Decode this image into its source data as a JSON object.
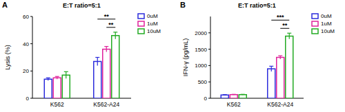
{
  "chart_data": [
    {
      "type": "bar",
      "panel_label": "A",
      "title": "E:T ratio=5:1",
      "y_label": "Lysis (%)",
      "categories": [
        "K562",
        "K562-A24"
      ],
      "series": [
        {
          "name": "0uM",
          "color": "#2b2bdc",
          "values": [
            14,
            27
          ],
          "errors": [
            1,
            3
          ]
        },
        {
          "name": "1uM",
          "color": "#e0209a",
          "values": [
            15,
            36
          ],
          "errors": [
            1,
            2
          ]
        },
        {
          "name": "10uM",
          "color": "#22aa22",
          "values": [
            17,
            46
          ],
          "errors": [
            2.5,
            2.5
          ]
        }
      ],
      "ylim": [
        0,
        60
      ],
      "yticks": [
        0,
        20,
        40,
        60
      ],
      "legend": "right",
      "annotations": [
        {
          "text": "**",
          "category": "K562-A24",
          "from": "1uM",
          "to": "10uM"
        },
        {
          "text": "**",
          "category": "K562-A24",
          "from": "0uM",
          "to": "10uM"
        }
      ]
    },
    {
      "type": "bar",
      "panel_label": "B",
      "title": "E:T ratio=5:1",
      "y_label": "IFN-γ (pg/mL)",
      "categories": [
        "K562",
        "K562-A24"
      ],
      "series": [
        {
          "name": "0uM",
          "color": "#2b2bdc",
          "values": [
            100,
            900
          ],
          "errors": [
            10,
            80
          ]
        },
        {
          "name": "1uM",
          "color": "#e0209a",
          "values": [
            110,
            1250
          ],
          "errors": [
            10,
            50
          ]
        },
        {
          "name": "10uM",
          "color": "#22aa22",
          "values": [
            110,
            1900
          ],
          "errors": [
            10,
            90
          ]
        }
      ],
      "ylim": [
        0,
        2500
      ],
      "yticks": [
        0,
        500,
        1000,
        1500,
        2000
      ],
      "legend": "right",
      "annotations": [
        {
          "text": "**",
          "category": "K562-A24",
          "from": "1uM",
          "to": "10uM"
        },
        {
          "text": "***",
          "category": "K562-A24",
          "from": "0uM",
          "to": "10uM"
        }
      ]
    }
  ]
}
